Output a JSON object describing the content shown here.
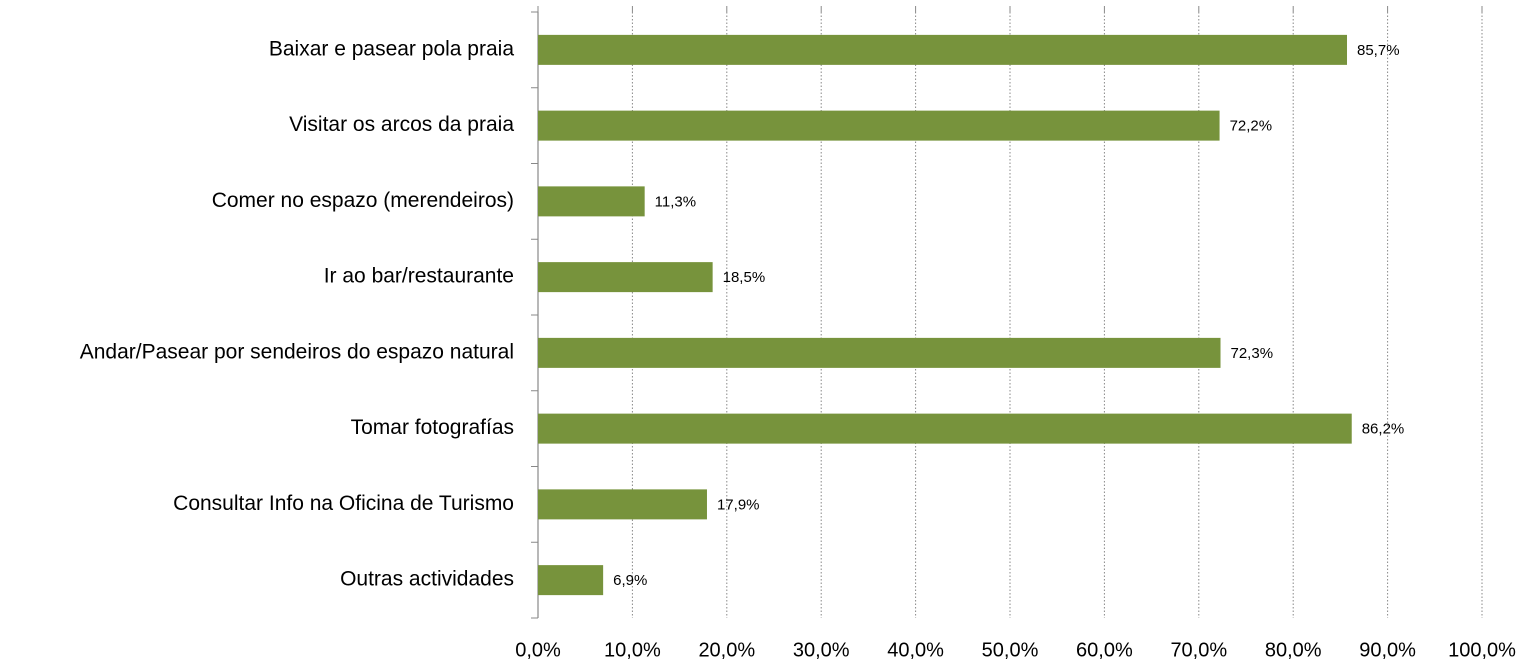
{
  "chart_data": {
    "type": "bar",
    "orientation": "horizontal",
    "categories": [
      "Baixar e pasear pola praia",
      "Visitar os arcos da praia",
      "Comer no espazo (merendeiros)",
      "Ir ao bar/restaurante",
      "Andar/Pasear por sendeiros do espazo natural",
      "Tomar fotografías",
      "Consultar Info na Oficina de Turismo",
      "Outras actividades"
    ],
    "values": [
      85.7,
      72.2,
      11.3,
      18.5,
      72.3,
      86.2,
      17.9,
      6.9
    ],
    "value_labels": [
      "85,7%",
      "72,2%",
      "11,3%",
      "18,5%",
      "72,3%",
      "86,2%",
      "17,9%",
      "6,9%"
    ],
    "color": "#77933c",
    "xlim": [
      0,
      100
    ],
    "xticks": [
      {
        "value": 0,
        "label": "0,0%"
      },
      {
        "value": 10,
        "label": "10,0%"
      },
      {
        "value": 20,
        "label": "20,0%"
      },
      {
        "value": 30,
        "label": "30,0%"
      },
      {
        "value": 40,
        "label": "40,0%"
      },
      {
        "value": 50,
        "label": "50,0%"
      },
      {
        "value": 60,
        "label": "60,0%"
      },
      {
        "value": 70,
        "label": "70,0%"
      },
      {
        "value": 80,
        "label": "80,0%"
      },
      {
        "value": 90,
        "label": "90,0%"
      },
      {
        "value": 100,
        "label": "100,0%"
      }
    ],
    "grid": true
  }
}
